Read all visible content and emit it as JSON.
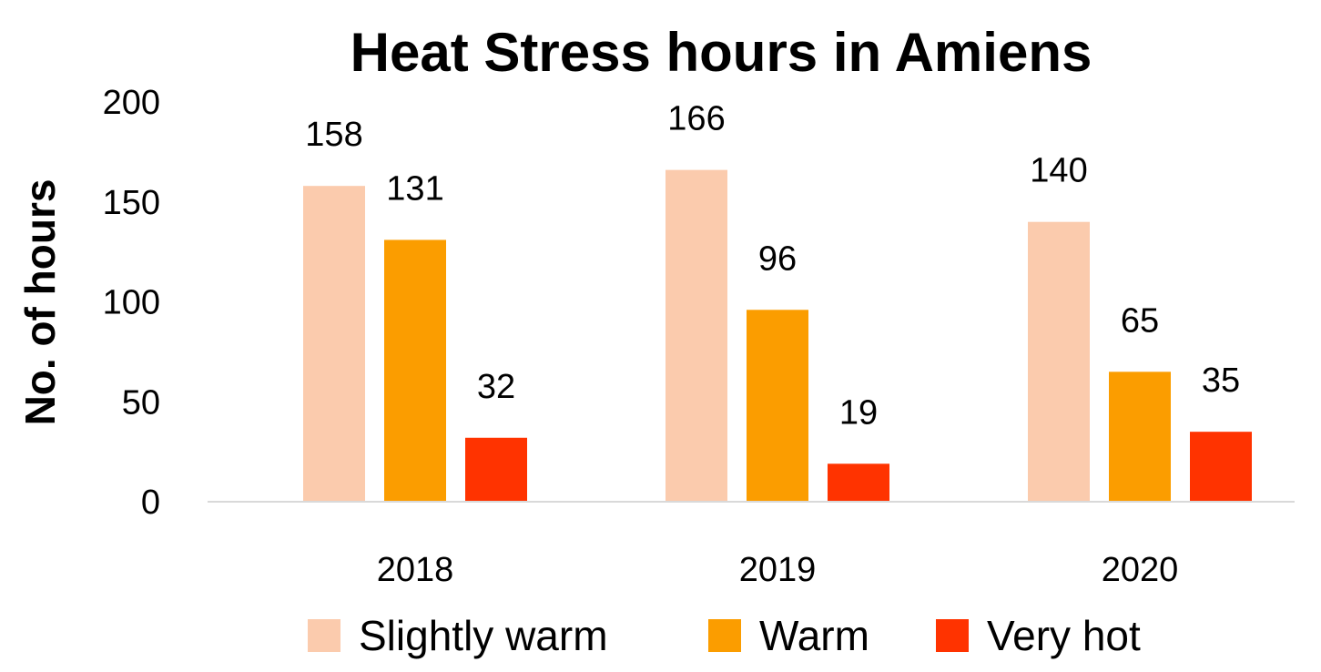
{
  "chart_data": {
    "type": "bar",
    "title": "Heat Stress hours in Amiens",
    "xlabel": "",
    "ylabel": "No. of hours",
    "ylim": [
      0,
      200
    ],
    "yticks": [
      "0",
      "50",
      "100",
      "150",
      "200"
    ],
    "categories": [
      "2018",
      "2019",
      "2020"
    ],
    "series": [
      {
        "name": "Slightly warm",
        "color": "#FBCBAD",
        "values": [
          158,
          166,
          140
        ]
      },
      {
        "name": "Warm",
        "color": "#FB9D00",
        "values": [
          131,
          96,
          65
        ]
      },
      {
        "name": "Very hot",
        "color": "#FF3300",
        "values": [
          32,
          19,
          35
        ]
      }
    ],
    "legend_position": "bottom",
    "grid": false
  }
}
